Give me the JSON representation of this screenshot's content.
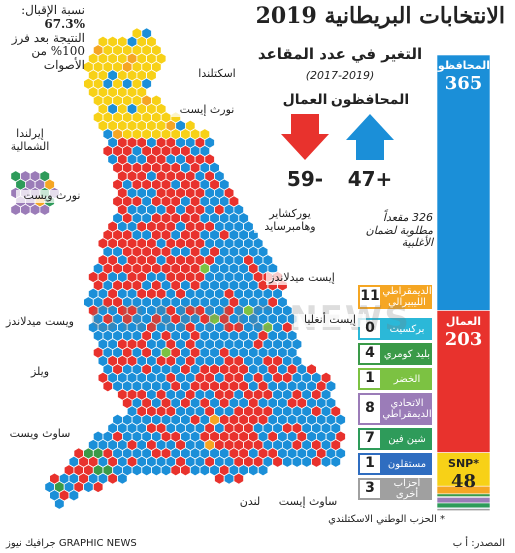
{
  "header": {
    "title": "الانتخابات البريطانية 2019",
    "turnout_label": "نسبة الإقبال:",
    "turnout": "67.3%",
    "count_note": "النتيجة بعد فرز 100% من الأصوات"
  },
  "seat_change": {
    "title": "التغير في عدد المقاعد",
    "period": "(2017-2019)",
    "items": [
      {
        "party": "المحافظون",
        "value": "47+"
      },
      {
        "party": "العمال",
        "value": "59-"
      }
    ]
  },
  "majority_note": "326 مقعداً مطلوبة لضمان الأغلبية",
  "parties": [
    {
      "name": "المحافظون",
      "seats": 365,
      "color": "#1b8fd8"
    },
    {
      "name": "العمال",
      "seats": 203,
      "color": "#e8322d"
    },
    {
      "name": "*SNP",
      "seats": 48,
      "color": "#f7d117"
    },
    {
      "name": "الديمقراطي الليبيرالي",
      "seats": 11,
      "color": "#f5a623"
    },
    {
      "name": "بركسيت",
      "seats": 0,
      "color": "#2bb8d8"
    },
    {
      "name": "بليد كومري",
      "seats": 4,
      "color": "#3a9a48"
    },
    {
      "name": "الخضر",
      "seats": 1,
      "color": "#7cc242"
    },
    {
      "name": "الاتحادي الديمقراطي",
      "seats": 8,
      "color": "#9b7cb8"
    },
    {
      "name": "شين فين",
      "seats": 7,
      "color": "#2e9b5a"
    },
    {
      "name": "مستقلون",
      "seats": 1,
      "color": "#2f6dc0"
    },
    {
      "name": "أحزاب أخرى",
      "seats": 3,
      "color": "#a0a0a0"
    }
  ],
  "regions": [
    "اسكتلندا",
    "نورث إيست",
    "إيرلندا الشمالية",
    "نورث ويست",
    "يوركشاير وهامبرسايد",
    "إيست ميدلاندز",
    "إيست أنغليا",
    "ويست ميدلاندز",
    "ويلز",
    "ساوث ويست",
    "لندن",
    "ساوث إيست"
  ],
  "footnote": "* الحزب الوطني الاسكتلندي",
  "source": "المصدر: أ ب",
  "credit": "GRAPHIC NEWS جرافيك نيوز",
  "watermark": "GRAPHIC NEWS"
}
